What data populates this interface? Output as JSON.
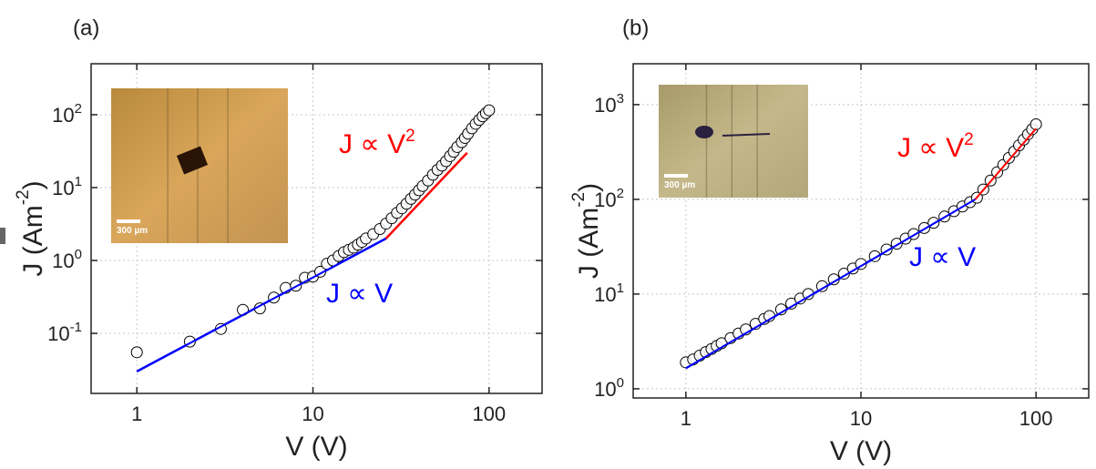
{
  "chart_data": [
    {
      "type": "scatter",
      "panel_label": "(a)",
      "x_label": "V (V)",
      "y_label": {
        "text": "J (Am",
        "superscript": "-2",
        "tail": ")"
      },
      "log_x": true,
      "log_y": true,
      "grid": true,
      "xlim": [
        0.55,
        200
      ],
      "ylim": [
        0.015,
        500
      ],
      "xticks": [
        1,
        10,
        100
      ],
      "yticks": [
        {
          "value": 0.1,
          "label": "10",
          "exponent": "-1"
        },
        {
          "value": 1,
          "label": "10",
          "exponent": "0"
        },
        {
          "value": 10,
          "label": "10",
          "exponent": "1"
        },
        {
          "value": 100,
          "label": "10",
          "exponent": "2"
        }
      ],
      "inset": {
        "scale_label": "300 µm"
      },
      "annotations": [
        {
          "text": "J ∝ V",
          "superscript": "2",
          "color": "#ff0000"
        },
        {
          "text": "J ∝ V",
          "color": "#0000ff"
        }
      ],
      "series": [
        {
          "type": "scatter",
          "color": "#000000",
          "x": [
            1,
            2,
            3,
            4,
            5,
            6,
            7,
            8,
            9,
            10,
            11,
            12,
            13,
            14,
            15,
            16,
            17,
            18,
            19,
            20,
            22,
            24,
            26,
            28,
            30,
            32,
            34,
            36,
            38,
            40,
            42,
            45,
            48,
            51,
            54,
            57,
            60,
            63,
            66,
            70,
            73,
            76,
            80,
            84,
            88,
            92,
            96,
            100
          ],
          "values": [
            0.055,
            0.077,
            0.115,
            0.21,
            0.22,
            0.31,
            0.42,
            0.45,
            0.58,
            0.6,
            0.7,
            0.9,
            1.0,
            1.15,
            1.3,
            1.4,
            1.5,
            1.65,
            1.8,
            2.0,
            2.3,
            2.7,
            3.2,
            3.8,
            4.5,
            5.2,
            6.0,
            7.0,
            8.0,
            9.2,
            10.5,
            12.5,
            15,
            17.5,
            20,
            23,
            27,
            31,
            36,
            42,
            48,
            55,
            65,
            75,
            85,
            95,
            105,
            115
          ]
        },
        {
          "type": "line",
          "color": "#0000ff",
          "x": [
            1,
            26
          ],
          "values": [
            0.03,
            2.0
          ]
        },
        {
          "type": "line",
          "color": "#ff0000",
          "x": [
            26,
            75
          ],
          "values": [
            2.0,
            30
          ]
        }
      ]
    },
    {
      "type": "scatter",
      "panel_label": "(b)",
      "x_label": "V (V)",
      "y_label": {
        "text": "J (Am",
        "superscript": "-2",
        "tail": ")"
      },
      "log_x": true,
      "log_y": true,
      "grid": true,
      "xlim": [
        0.5,
        200
      ],
      "ylim": [
        0.8,
        2700
      ],
      "xticks": [
        1,
        10,
        100
      ],
      "yticks": [
        {
          "value": 1,
          "label": "10",
          "exponent": "0"
        },
        {
          "value": 10,
          "label": "10",
          "exponent": "1"
        },
        {
          "value": 100,
          "label": "10",
          "exponent": "2"
        },
        {
          "value": 1000,
          "label": "10",
          "exponent": "3"
        }
      ],
      "inset": {
        "scale_label": "300 µm"
      },
      "annotations": [
        {
          "text": "J ∝ V",
          "superscript": "2",
          "color": "#ff0000"
        },
        {
          "text": "J ∝ V",
          "color": "#0000ff"
        }
      ],
      "series": [
        {
          "type": "scatter",
          "color": "#000000",
          "x": [
            1,
            1.1,
            1.2,
            1.3,
            1.4,
            1.5,
            1.6,
            1.8,
            2,
            2.2,
            2.5,
            2.8,
            3,
            3.5,
            4,
            4.5,
            5,
            6,
            7,
            8,
            9,
            10,
            12,
            14,
            16,
            18,
            20,
            23,
            26,
            30,
            34,
            38,
            42,
            46,
            50,
            55,
            60,
            65,
            70,
            75,
            80,
            85,
            90,
            95,
            100
          ],
          "values": [
            1.9,
            2.04,
            2.24,
            2.44,
            2.63,
            2.83,
            3.03,
            3.43,
            3.83,
            4.23,
            4.84,
            5.46,
            5.86,
            6.88,
            7.93,
            8.97,
            10.0,
            12.1,
            14.3,
            16.4,
            18.6,
            20.8,
            25.1,
            29.5,
            34.0,
            38.5,
            43.0,
            49.8,
            56.6,
            65.8,
            75,
            84,
            93.4,
            104,
            127,
            158,
            193,
            231,
            274,
            320,
            371,
            426,
            486,
            549,
            620
          ]
        },
        {
          "type": "line",
          "color": "#0000ff",
          "x": [
            1,
            45
          ],
          "values": [
            1.65,
            100
          ]
        },
        {
          "type": "line",
          "color": "#ff0000",
          "x": [
            45,
            100
          ],
          "values": [
            100,
            560
          ]
        }
      ]
    }
  ]
}
